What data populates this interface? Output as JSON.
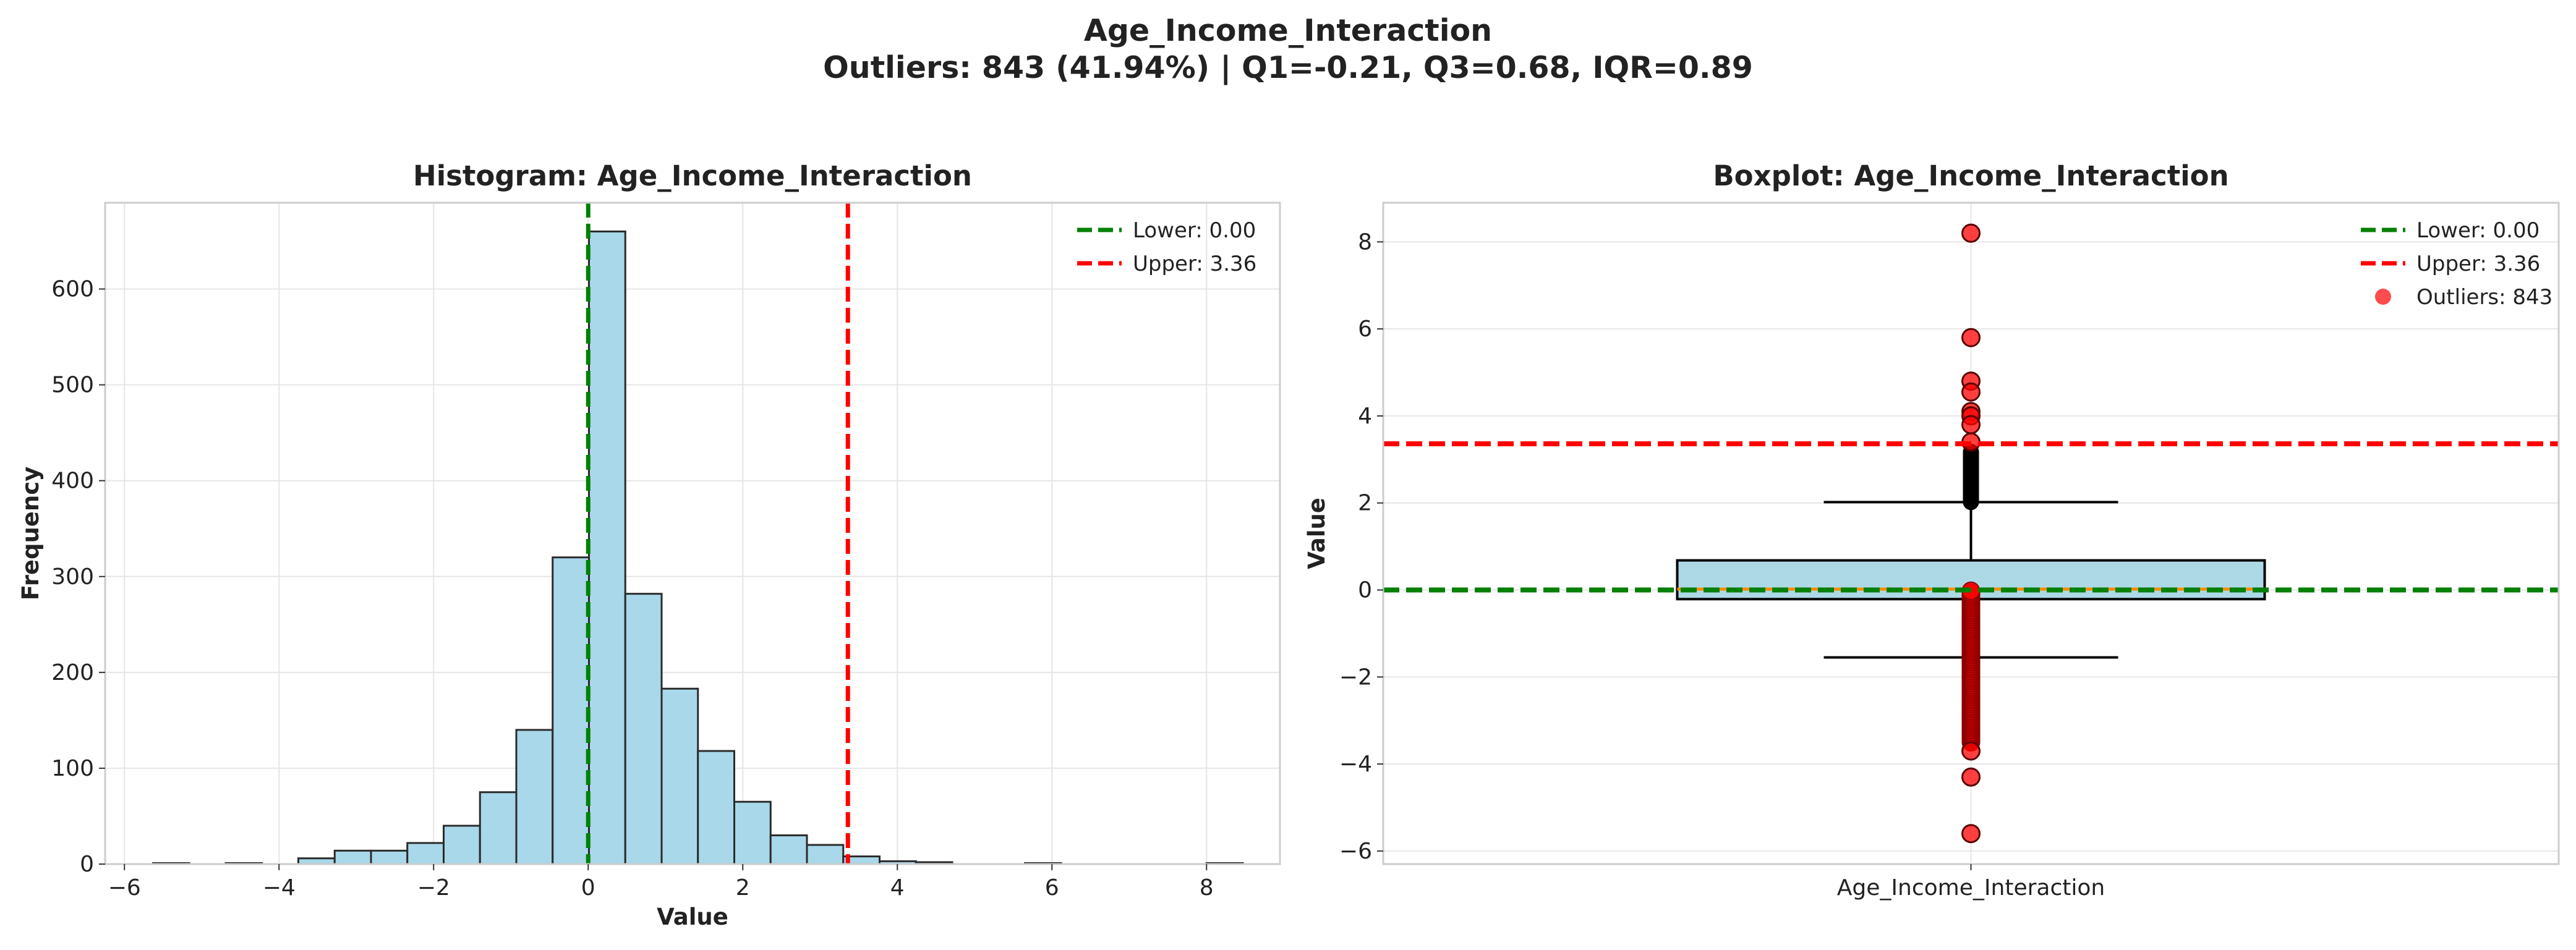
{
  "figure": {
    "suptitle_line1": "Age_Income_Interaction",
    "suptitle_line2": "Outliers: 843 (41.94%) | Q1=-0.21, Q3=0.68, IQR=0.89"
  },
  "colors": {
    "bar_fill": "#a8d8ea",
    "bar_edge": "#2b2b2b",
    "lower_line": "#008000",
    "upper_line": "#ff0000",
    "box_fill": "#add8e6",
    "median_line": "#ff8c00",
    "outlier_fill": "#ff0000",
    "grid": "#e6e6e6",
    "frame": "#cccccc",
    "text": "#222222"
  },
  "chart_data": [
    {
      "type": "bar",
      "subtype": "histogram",
      "title": "Histogram: Age_Income_Interaction",
      "xlabel": "Value",
      "ylabel": "Frequency",
      "xlim": [
        -6.25,
        8.95
      ],
      "ylim": [
        0,
        690
      ],
      "xticks": [
        -6,
        -4,
        -2,
        0,
        2,
        4,
        6,
        8
      ],
      "xtick_labels": [
        "−6",
        "−4",
        "−2",
        "0",
        "2",
        "4",
        "6",
        "8"
      ],
      "yticks": [
        0,
        100,
        200,
        300,
        400,
        500,
        600
      ],
      "grid": true,
      "legend_position": "top-right",
      "bin_edges": [
        -5.63,
        -5.16,
        -4.69,
        -4.22,
        -3.75,
        -3.28,
        -2.81,
        -2.34,
        -1.87,
        -1.4,
        -0.93,
        -0.46,
        0.01,
        0.48,
        0.95,
        1.42,
        1.89,
        2.36,
        2.83,
        3.3,
        3.77,
        4.24,
        4.71,
        5.18,
        5.65,
        6.12,
        6.59,
        7.06,
        7.53,
        8.0,
        8.47
      ],
      "counts": [
        1,
        0,
        1,
        0,
        6,
        14,
        14,
        22,
        40,
        75,
        140,
        320,
        660,
        282,
        183,
        118,
        65,
        30,
        20,
        8,
        3,
        2,
        0,
        0,
        1,
        0,
        0,
        0,
        0,
        1
      ],
      "lines": [
        {
          "name": "Lower: 0.00",
          "x": 0.0,
          "color": "#008000"
        },
        {
          "name": "Upper: 3.36",
          "x": 3.36,
          "color": "#ff0000"
        }
      ],
      "legend": [
        "Lower: 0.00",
        "Upper: 3.36"
      ]
    },
    {
      "type": "boxplot",
      "title": "Boxplot: Age_Income_Interaction",
      "ylabel": "Value",
      "category": "Age_Income_Interaction",
      "ylim": [
        -6.3,
        8.9
      ],
      "yticks": [
        -6,
        -4,
        -2,
        0,
        2,
        4,
        6,
        8
      ],
      "ytick_labels": [
        "−6",
        "−4",
        "−2",
        "0",
        "2",
        "4",
        "6",
        "8"
      ],
      "grid": true,
      "legend_position": "top-right",
      "q1": -0.21,
      "q3": 0.68,
      "median": 0.02,
      "whisker_low": -1.55,
      "whisker_high": 2.02,
      "fliers_black_range": [
        2.02,
        3.2
      ],
      "lines": [
        {
          "name": "Lower: 0.00",
          "y": 0.0,
          "color": "#008000"
        },
        {
          "name": "Upper: 3.36",
          "y": 3.36,
          "color": "#ff0000"
        }
      ],
      "outliers": {
        "name": "Outliers: 843",
        "dense_range": [
          -3.5,
          0.0
        ],
        "points": [
          8.2,
          5.8,
          4.8,
          4.55,
          4.1,
          4.0,
          3.8,
          3.4,
          -3.7,
          -4.3,
          -5.6
        ]
      },
      "legend": [
        "Lower: 0.00",
        "Upper: 3.36",
        "Outliers: 843"
      ]
    }
  ]
}
